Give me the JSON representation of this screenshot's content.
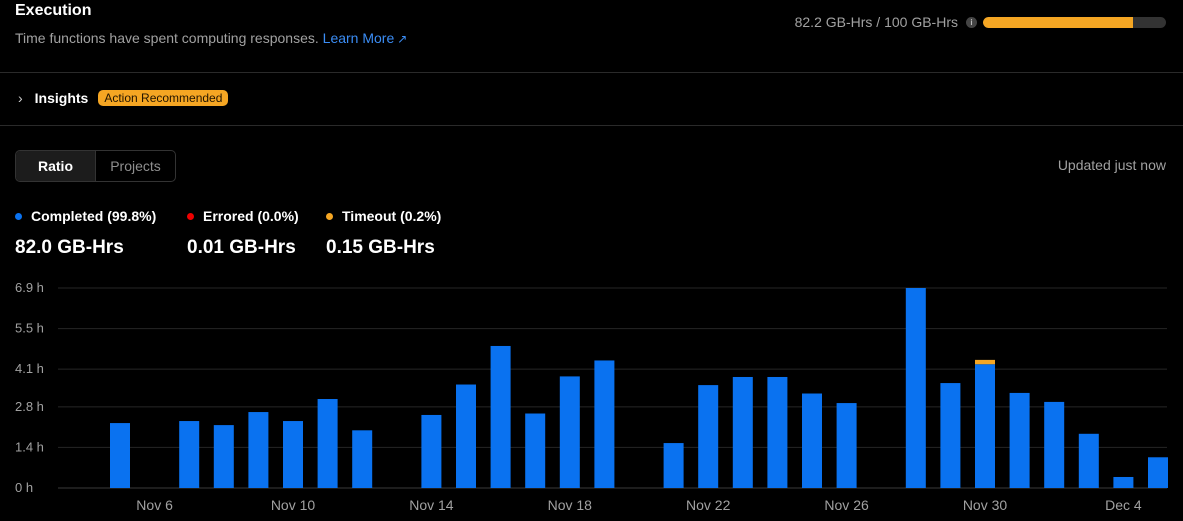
{
  "header": {
    "title": "Execution",
    "subtitle": "Time functions have spent computing responses.",
    "learn_more": "Learn More",
    "learn_more_icon": "external-link-icon"
  },
  "usage": {
    "text": "82.2 GB-Hrs / 100 GB-Hrs",
    "info_icon": "info-icon",
    "fraction": 0.822,
    "color": "#f5a623"
  },
  "insights": {
    "label": "Insights",
    "badge": "Action Recommended",
    "icon": "chevron-right-icon"
  },
  "tabs": [
    "Ratio",
    "Projects"
  ],
  "updated": "Updated just now",
  "legend": [
    {
      "label": "Completed (99.8%)",
      "value": "82.0 GB-Hrs",
      "color": "#0a72f0"
    },
    {
      "label": "Errored (0.0%)",
      "value": "0.01 GB-Hrs",
      "color": "#ee0000"
    },
    {
      "label": "Timeout (0.2%)",
      "value": "0.15 GB-Hrs",
      "color": "#f5a623"
    }
  ],
  "chart_data": {
    "type": "bar",
    "stacked": true,
    "grid": true,
    "ylim": [
      0,
      6.9
    ],
    "y_ticks": [
      0,
      1.4,
      2.8,
      4.1,
      5.5,
      6.9
    ],
    "y_tick_labels": [
      "0 h",
      "1.4 h",
      "2.8 h",
      "4.1 h",
      "5.5 h",
      "6.9 h"
    ],
    "x_tick_labels": [
      "Nov 6",
      "Nov 10",
      "Nov 14",
      "Nov 18",
      "Nov 22",
      "Nov 26",
      "Nov 30",
      "Dec 4"
    ],
    "x_tick_index": [
      1,
      5,
      9,
      13,
      17,
      21,
      25,
      29
    ],
    "categories": [
      "Nov 5",
      "Nov 6",
      "Nov 7",
      "Nov 8",
      "Nov 9",
      "Nov 10",
      "Nov 11",
      "Nov 12",
      "Nov 13",
      "Nov 14",
      "Nov 15",
      "Nov 16",
      "Nov 17",
      "Nov 18",
      "Nov 19",
      "Nov 20",
      "Nov 21",
      "Nov 22",
      "Nov 23",
      "Nov 24",
      "Nov 25",
      "Nov 26",
      "Nov 27",
      "Nov 28",
      "Nov 29",
      "Nov 30",
      "Dec 1",
      "Dec 2",
      "Dec 3",
      "Dec 4",
      "Dec 5"
    ],
    "series": [
      {
        "name": "Completed",
        "color": "#0a72f0",
        "values": [
          2.24,
          0,
          2.31,
          2.17,
          2.62,
          2.31,
          3.07,
          1.99,
          0,
          2.52,
          3.57,
          4.9,
          2.57,
          3.85,
          4.4,
          0,
          1.55,
          3.55,
          3.83,
          3.83,
          3.26,
          2.93,
          0,
          6.9,
          3.62,
          4.27,
          3.28,
          2.97,
          1.87,
          0.38,
          1.06
        ]
      },
      {
        "name": "Errored",
        "color": "#ee0000",
        "values": [
          0,
          0,
          0,
          0,
          0,
          0,
          0,
          0,
          0,
          0,
          0,
          0,
          0,
          0,
          0,
          0,
          0,
          0,
          0,
          0,
          0,
          0,
          0,
          0,
          0,
          0,
          0,
          0,
          0,
          0,
          0
        ]
      },
      {
        "name": "Timeout",
        "color": "#f5a623",
        "values": [
          0,
          0,
          0,
          0,
          0,
          0,
          0,
          0,
          0,
          0,
          0,
          0,
          0,
          0,
          0,
          0,
          0,
          0,
          0,
          0,
          0,
          0,
          0,
          0,
          0,
          0.15,
          0,
          0,
          0,
          0,
          0
        ]
      }
    ]
  }
}
